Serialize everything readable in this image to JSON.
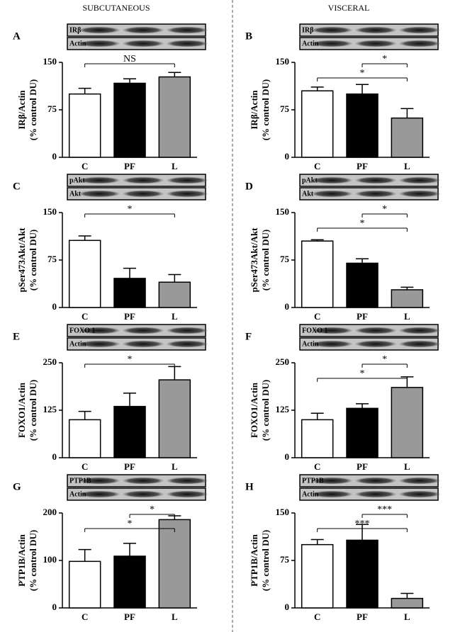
{
  "columns": [
    "SUBCUTANEOUS",
    "VISCERAL"
  ],
  "chart_data": [
    {
      "type": "bar",
      "panel": "A",
      "blot_labels": [
        "IRβ",
        "Actin"
      ],
      "ylabel": "IRβ/Actin",
      "ylabel2": "(% control DU)",
      "categories": [
        "C",
        "PF",
        "L"
      ],
      "values": [
        100,
        117,
        127
      ],
      "errors": [
        9,
        7,
        7
      ],
      "colors": [
        "#ffffff",
        "#000000",
        "#999999"
      ],
      "ylim": [
        0,
        150
      ],
      "yticks": [
        0,
        75,
        150
      ],
      "annotations": [
        {
          "text": "NS",
          "from": 0,
          "to": 2
        }
      ]
    },
    {
      "type": "bar",
      "panel": "B",
      "blot_labels": [
        "IRβ",
        "Actin"
      ],
      "ylabel": "IRβ/Actin",
      "ylabel2": "(% control DU)",
      "categories": [
        "C",
        "PF",
        "L"
      ],
      "values": [
        105,
        100,
        62
      ],
      "errors": [
        6,
        15,
        15
      ],
      "colors": [
        "#ffffff",
        "#000000",
        "#999999"
      ],
      "ylim": [
        0,
        150
      ],
      "yticks": [
        0,
        75,
        150
      ],
      "annotations": [
        {
          "text": "*",
          "from": 0,
          "to": 2
        },
        {
          "text": "*",
          "from": 1,
          "to": 2
        }
      ]
    },
    {
      "type": "bar",
      "panel": "C",
      "blot_labels": [
        "pAkt",
        "Akt"
      ],
      "ylabel": "pSer473Akt/Akt",
      "ylabel2": "(% control DU)",
      "categories": [
        "C",
        "PF",
        "L"
      ],
      "values": [
        106,
        46,
        40
      ],
      "errors": [
        7,
        16,
        12
      ],
      "colors": [
        "#ffffff",
        "#000000",
        "#999999"
      ],
      "ylim": [
        0,
        150
      ],
      "yticks": [
        0,
        75,
        150
      ],
      "annotations": [
        {
          "text": "*",
          "from": 0,
          "to": 2
        }
      ]
    },
    {
      "type": "bar",
      "panel": "D",
      "blot_labels": [
        "pAkt",
        "Akt"
      ],
      "ylabel": "pSer473Akt/Akt",
      "ylabel2": "(% control DU)",
      "categories": [
        "C",
        "PF",
        "L"
      ],
      "values": [
        105,
        70,
        28
      ],
      "errors": [
        2,
        7,
        4
      ],
      "colors": [
        "#ffffff",
        "#000000",
        "#999999"
      ],
      "ylim": [
        0,
        150
      ],
      "yticks": [
        0,
        75,
        150
      ],
      "annotations": [
        {
          "text": "*",
          "from": 0,
          "to": 2
        },
        {
          "text": "*",
          "from": 1,
          "to": 2
        }
      ]
    },
    {
      "type": "bar",
      "panel": "E",
      "blot_labels": [
        "FOXO 1",
        "Actin"
      ],
      "ylabel": "FOXO1/Actin",
      "ylabel2": "(% control DU)",
      "categories": [
        "C",
        "PF",
        "L"
      ],
      "values": [
        100,
        135,
        205
      ],
      "errors": [
        22,
        35,
        35
      ],
      "colors": [
        "#ffffff",
        "#000000",
        "#999999"
      ],
      "ylim": [
        0,
        250
      ],
      "yticks": [
        0,
        125,
        250
      ],
      "annotations": [
        {
          "text": "*",
          "from": 0,
          "to": 2
        }
      ]
    },
    {
      "type": "bar",
      "panel": "F",
      "blot_labels": [
        "FOXO 1",
        "Actin"
      ],
      "ylabel": "FOXO1/Actin",
      "ylabel2": "(% control DU)",
      "categories": [
        "C",
        "PF",
        "L"
      ],
      "values": [
        100,
        130,
        185
      ],
      "errors": [
        17,
        12,
        28
      ],
      "colors": [
        "#ffffff",
        "#000000",
        "#999999"
      ],
      "ylim": [
        0,
        250
      ],
      "yticks": [
        0,
        125,
        250
      ],
      "annotations": [
        {
          "text": "*",
          "from": 0,
          "to": 2
        },
        {
          "text": "*",
          "from": 1,
          "to": 2
        }
      ]
    },
    {
      "type": "bar",
      "panel": "G",
      "blot_labels": [
        "PTP1B",
        "Actin"
      ],
      "ylabel": "PTP1B/Actin",
      "ylabel2": "(% control DU)",
      "categories": [
        "C",
        "PF",
        "L"
      ],
      "values": [
        98,
        109,
        186
      ],
      "errors": [
        25,
        27,
        8
      ],
      "colors": [
        "#ffffff",
        "#000000",
        "#999999"
      ],
      "ylim": [
        0,
        200
      ],
      "yticks": [
        0,
        100,
        200
      ],
      "annotations": [
        {
          "text": "*",
          "from": 0,
          "to": 2
        },
        {
          "text": "*",
          "from": 1,
          "to": 2
        }
      ]
    },
    {
      "type": "bar",
      "panel": "H",
      "blot_labels": [
        "PTP1B",
        "Actin"
      ],
      "ylabel": "PTP1B/Actin",
      "ylabel2": "(% control DU)",
      "categories": [
        "C",
        "PF",
        "L"
      ],
      "values": [
        100,
        107,
        15
      ],
      "errors": [
        8,
        25,
        8
      ],
      "colors": [
        "#ffffff",
        "#000000",
        "#999999"
      ],
      "ylim": [
        0,
        150
      ],
      "yticks": [
        0,
        75,
        150
      ],
      "annotations": [
        {
          "text": "***",
          "from": 0,
          "to": 2
        },
        {
          "text": "***",
          "from": 1,
          "to": 2
        }
      ]
    }
  ]
}
